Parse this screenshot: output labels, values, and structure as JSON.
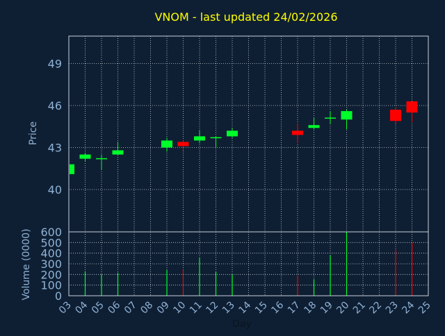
{
  "chart_data": {
    "type": "candlestick",
    "title": "VNOM - last updated 24/02/2026",
    "colors": {
      "background": "#0f1f33",
      "title": "#ffff00",
      "axis_text": "#8fb2d6",
      "grid": "#c8d2dc",
      "frame": "#c8d2dc",
      "up": "#00ff2a",
      "down": "#ff0000"
    },
    "price_panel": {
      "ylabel": "Price",
      "ylim": [
        37.0,
        40.0
      ],
      "yticks": [
        40,
        43,
        46,
        49
      ],
      "ytick_labels": [
        "40",
        "43",
        "46",
        "49"
      ]
    },
    "volume_panel": {
      "ylabel": "Volume (0000)",
      "ylim": [
        0,
        600
      ],
      "yticks": [
        0,
        100,
        200,
        300,
        400,
        500,
        600
      ],
      "ytick_labels": [
        "0",
        "100",
        "200",
        "300",
        "400",
        "500",
        "600"
      ]
    },
    "xlabel": "Day",
    "xticks": [
      "03",
      "04",
      "05",
      "06",
      "07",
      "08",
      "09",
      "10",
      "11",
      "12",
      "13",
      "14",
      "15",
      "16",
      "17",
      "18",
      "19",
      "20",
      "21",
      "22",
      "23",
      "24",
      "25"
    ],
    "candles": [
      {
        "day": "03",
        "open": 41.1,
        "close": 41.8,
        "high": 41.9,
        "low": 41.0,
        "volume": 0
      },
      {
        "day": "04",
        "open": 42.2,
        "close": 42.5,
        "high": 42.6,
        "low": 42.0,
        "volume": 230
      },
      {
        "day": "05",
        "open": 42.2,
        "close": 42.2,
        "high": 42.5,
        "low": 41.4,
        "volume": 200
      },
      {
        "day": "06",
        "open": 42.5,
        "close": 42.8,
        "high": 43.4,
        "low": 42.5,
        "volume": 215
      },
      {
        "day": "09",
        "open": 43.0,
        "close": 43.5,
        "high": 43.7,
        "low": 42.7,
        "volume": 240
      },
      {
        "day": "10",
        "open": 43.4,
        "close": 43.1,
        "high": 43.5,
        "low": 42.8,
        "volume": 245
      },
      {
        "day": "11",
        "open": 43.5,
        "close": 43.8,
        "high": 44.2,
        "low": 43.3,
        "volume": 355
      },
      {
        "day": "12",
        "open": 43.7,
        "close": 43.7,
        "high": 43.8,
        "low": 43.0,
        "volume": 225
      },
      {
        "day": "13",
        "open": 43.8,
        "close": 44.2,
        "high": 44.4,
        "low": 43.7,
        "volume": 200
      },
      {
        "day": "17",
        "open": 44.2,
        "close": 43.9,
        "high": 44.7,
        "low": 43.3,
        "volume": 190
      },
      {
        "day": "18",
        "open": 44.4,
        "close": 44.6,
        "high": 45.1,
        "low": 44.3,
        "volume": 155
      },
      {
        "day": "19",
        "open": 45.1,
        "close": 45.1,
        "high": 45.6,
        "low": 44.7,
        "volume": 380
      },
      {
        "day": "20",
        "open": 45.0,
        "close": 45.6,
        "high": 45.7,
        "low": 44.3,
        "volume": 600
      },
      {
        "day": "23",
        "open": 45.7,
        "close": 44.9,
        "high": 45.9,
        "low": 44.7,
        "volume": 430
      },
      {
        "day": "24",
        "open": 46.3,
        "close": 45.5,
        "high": 46.3,
        "low": 44.8,
        "volume": 500
      }
    ]
  }
}
